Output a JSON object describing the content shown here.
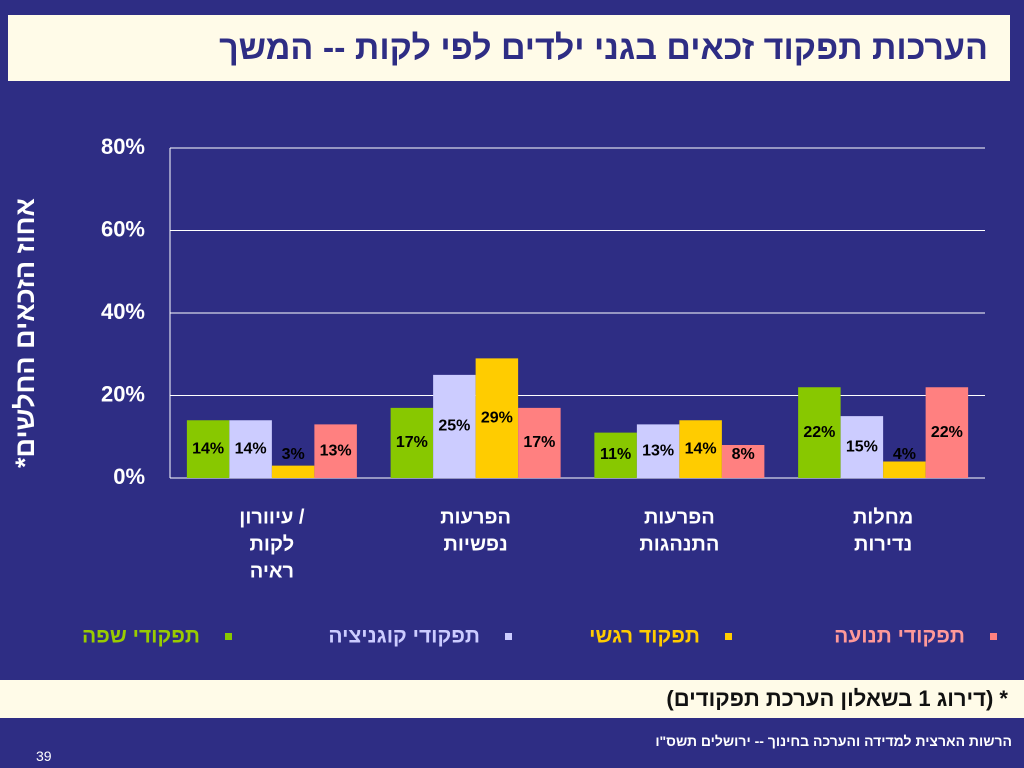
{
  "chart_data": {
    "type": "bar",
    "title": "הערכות תפקוד זכאים בגני ילדים לפי לקות -- המשך",
    "y_label": "אחוז הזכאים החלשים*",
    "categories": [
      [
        "עיוורון /",
        "לקות",
        "ראיה"
      ],
      [
        "הפרעות",
        "נפשיות"
      ],
      [
        "הפרעות",
        "התנהגות"
      ],
      [
        "מחלות",
        "נדירות"
      ]
    ],
    "series": [
      {
        "name": "תפקודי שפה",
        "color": "#88c800",
        "text_color": "#99cc00",
        "values": [
          14,
          17,
          11,
          22
        ],
        "value_labels": [
          "14%",
          "17%",
          "11%",
          "22%"
        ]
      },
      {
        "name": "תפקודי קוגניציה",
        "color": "#ccccff",
        "text_color": "#ccccff",
        "values": [
          14,
          25,
          13,
          15
        ],
        "value_labels": [
          "14%",
          "25%",
          "13%",
          "15%"
        ]
      },
      {
        "name": "תפקוד רגשי",
        "color": "#ffcc00",
        "text_color": "#ffcc00",
        "values": [
          3,
          29,
          14,
          4
        ],
        "value_labels": [
          "3%",
          "29%",
          "14%",
          "4%"
        ]
      },
      {
        "name": "תפקודי תנועה",
        "color": "#ff8080",
        "text_color": "#ff9999",
        "values": [
          13,
          17,
          8,
          22
        ],
        "value_labels": [
          "13%",
          "17%",
          "8%",
          "22%"
        ]
      }
    ],
    "ylim": [
      0,
      80
    ],
    "yticks": [
      {
        "value": 0,
        "label": "0%"
      },
      {
        "value": 20,
        "label": "20%"
      },
      {
        "value": 40,
        "label": "40%"
      },
      {
        "value": 60,
        "label": "60%"
      },
      {
        "value": 80,
        "label": "80%"
      }
    ],
    "grid": true
  },
  "slide": {
    "footnote": "* (דירוג 1 בשאלון הערכת תפקודים)",
    "footer": "הרשות הארצית למדידה והערכה בחינוך  -- ירושלים תשס\"ו",
    "page_number": "39"
  }
}
